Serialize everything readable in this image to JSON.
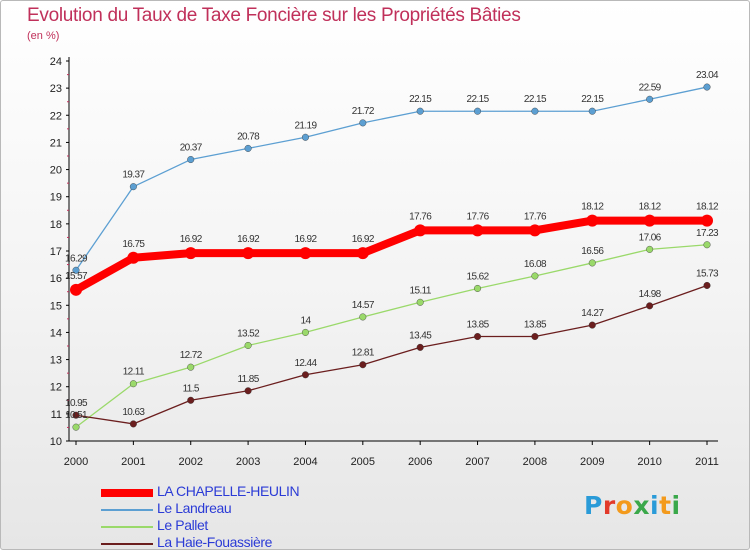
{
  "header": {
    "title": "Evolution du Taux de Taxe Foncière sur les Propriétés Bâties",
    "subtitle": "(en %)"
  },
  "logo": {
    "text": "Proxiti",
    "letter_colors": [
      "#2a9bd8",
      "#e23a2a",
      "#f39a1c",
      "#3aa84a",
      "#2a9bd8",
      "#f39a1c",
      "#3aa84a"
    ]
  },
  "chart_data": {
    "type": "line",
    "x": [
      "2000",
      "2001",
      "2002",
      "2003",
      "2004",
      "2005",
      "2006",
      "2007",
      "2008",
      "2009",
      "2010",
      "2011"
    ],
    "ylim": [
      10,
      24
    ],
    "yticks": [
      10,
      11,
      12,
      13,
      14,
      15,
      16,
      17,
      18,
      19,
      20,
      21,
      22,
      23,
      24
    ],
    "grid": false,
    "legend_position": "bottom-left",
    "series": [
      {
        "name": "LA CHAPELLE-HEULIN",
        "color": "#ff0000",
        "values": [
          15.57,
          16.75,
          16.92,
          16.92,
          16.92,
          16.92,
          17.76,
          17.76,
          17.76,
          18.12,
          18.12,
          18.12
        ],
        "labels": [
          "15.57",
          "16.75",
          "16.92",
          "16.92",
          "16.92",
          "16.92",
          "17.76",
          "17.76",
          "17.76",
          "18.12",
          "18.12",
          "18.12"
        ]
      },
      {
        "name": "Le Landreau",
        "color": "#5c9fd2",
        "values": [
          16.29,
          19.37,
          20.37,
          20.78,
          21.19,
          21.72,
          22.15,
          22.15,
          22.15,
          22.15,
          22.59,
          23.04
        ],
        "labels": [
          "16.29",
          "19.37",
          "20.37",
          "20.78",
          "21.19",
          "21.72",
          "22.15",
          "22.15",
          "22.15",
          "22.15",
          "22.59",
          "23.04"
        ]
      },
      {
        "name": "Le Pallet",
        "color": "#9ad96a",
        "values": [
          10.51,
          12.11,
          12.72,
          13.52,
          14,
          14.57,
          15.11,
          15.62,
          16.08,
          16.56,
          17.06,
          17.23
        ],
        "labels": [
          "10.51",
          "12.11",
          "12.72",
          "13.52",
          "14",
          "14.57",
          "15.11",
          "15.62",
          "16.08",
          "16.56",
          "17.06",
          "17.23"
        ]
      },
      {
        "name": "La Haie-Fouassière",
        "color": "#6b1e1e",
        "values": [
          10.95,
          10.63,
          11.5,
          11.85,
          12.44,
          12.81,
          13.45,
          13.85,
          13.85,
          14.27,
          14.98,
          15.73
        ],
        "labels": [
          "10.95",
          "10.63",
          "11.5",
          "11.85",
          "12.44",
          "12.81",
          "13.45",
          "13.85",
          "13.85",
          "14.27",
          "14.98",
          "15.73"
        ]
      }
    ]
  }
}
